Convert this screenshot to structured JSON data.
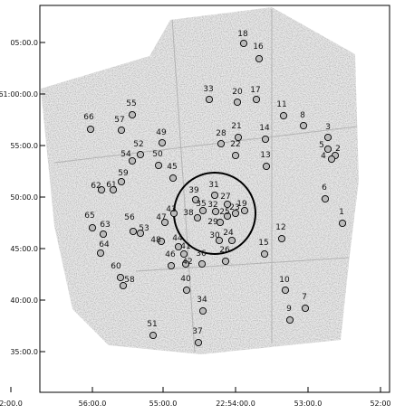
{
  "axes": {
    "y_labels": [
      "05:00.0",
      "61:00:00.0",
      "55:00.0",
      "50:00.0",
      "45:00.0",
      "40:00.0",
      "35:00.0"
    ],
    "x_labels": [
      "2:00.0",
      "56:00.0",
      "55:00.0",
      "22:54:00.0",
      "53:00.0",
      "52:00"
    ]
  },
  "sources": [
    "18",
    "16",
    "33",
    "20",
    "17",
    "11",
    "8",
    "3",
    "5",
    "2",
    "4",
    "21",
    "28",
    "14",
    "22",
    "13",
    "6",
    "1",
    "12",
    "15",
    "10",
    "7",
    "9",
    "66",
    "55",
    "57",
    "49",
    "52",
    "54",
    "50",
    "45",
    "59",
    "62",
    "61",
    "31",
    "27",
    "39",
    "35",
    "32",
    "23",
    "19",
    "25",
    "38",
    "29",
    "43",
    "47",
    "30",
    "24",
    "65",
    "63",
    "56",
    "53",
    "64",
    "48",
    "44",
    "41",
    "46",
    "42",
    "36",
    "26",
    "60",
    "58",
    "40",
    "34",
    "51",
    "37"
  ]
}
